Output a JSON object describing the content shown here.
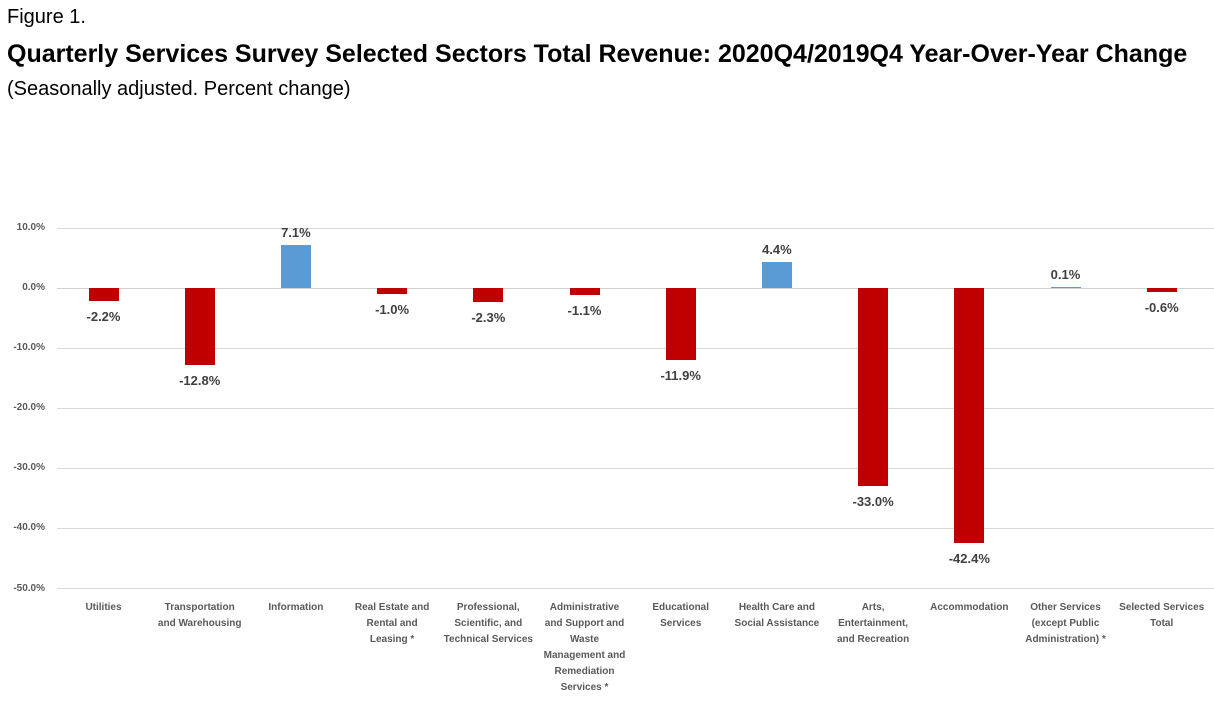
{
  "header": {
    "figure_label": "Figure 1.",
    "title": "Quarterly Services Survey Selected Sectors Total Revenue: 2020Q4/2019Q4 Year-Over-Year Change",
    "subtitle": "(Seasonally adjusted. Percent change)"
  },
  "chart_data": {
    "type": "bar",
    "title": "Quarterly Services Survey Selected Sectors Total Revenue: 2020Q4/2019Q4 Year-Over-Year Change",
    "subtitle": "(Seasonally adjusted. Percent change)",
    "xlabel": "",
    "ylabel": "",
    "categories": [
      "Utilities",
      "Transportation\nand Warehousing",
      "Information",
      "Real Estate and\nRental and\nLeasing *",
      "Professional,\nScientific, and\nTechnical Services",
      "Administrative\nand Support and\nWaste\nManagement and\nRemediation\nServices *",
      "Educational\nServices",
      "Health Care and\nSocial Assistance",
      "Arts,\nEntertainment,\nand Recreation",
      "Accommodation",
      "Other Services\n(except Public\nAdministration) *",
      "Selected Services\nTotal"
    ],
    "values": [
      -2.2,
      -12.8,
      7.1,
      -1.0,
      -2.3,
      -1.1,
      -11.9,
      4.4,
      -33.0,
      -42.4,
      0.1,
      -0.6
    ],
    "data_labels": [
      "-2.2%",
      "-12.8%",
      "7.1%",
      "-1.0%",
      "-2.3%",
      "-1.1%",
      "-11.9%",
      "4.4%",
      "-33.0%",
      "-42.4%",
      "0.1%",
      "-0.6%"
    ],
    "ylim": [
      -50,
      10
    ],
    "yticks": [
      {
        "value": 10,
        "label": "10.0%"
      },
      {
        "value": 0,
        "label": "0.0%"
      },
      {
        "value": -10,
        "label": "-10.0%"
      },
      {
        "value": -20,
        "label": "-20.0%"
      },
      {
        "value": -30,
        "label": "-30.0%"
      },
      {
        "value": -40,
        "label": "-40.0%"
      },
      {
        "value": -50,
        "label": "-50.0%"
      }
    ],
    "grid": true,
    "legend": "none",
    "positive_color": "#5B9BD5",
    "negative_color": "#C00000",
    "gridline_color": "#D9D9D9",
    "zero_line_color": "#D0D0D0",
    "axis_text_color": "#595959",
    "data_label_color": "#404040"
  }
}
